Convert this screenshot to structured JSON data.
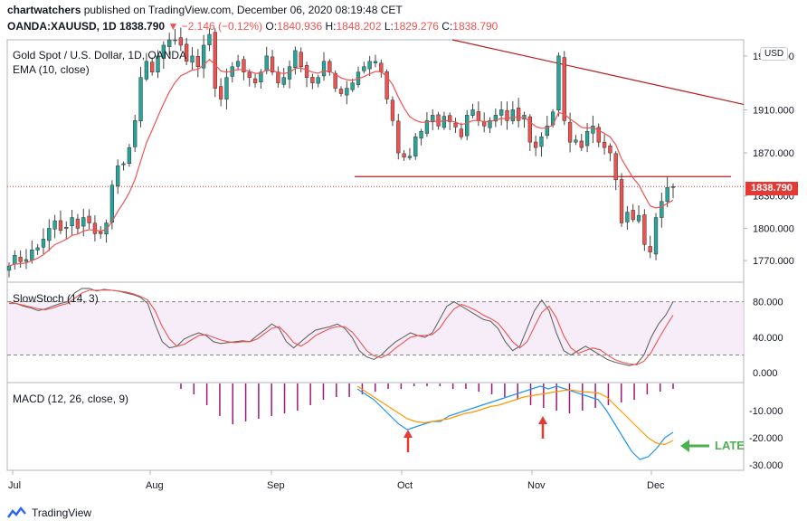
{
  "header": {
    "line1_user": "chartwatchers",
    "line1_text": " published on TradingView.com, December 06, 2020 08:19:48 CET",
    "symbol": "OANDA:XAUUSD, 1D",
    "last": "1838.790",
    "change": "▼ −2.146 (−0.12%)",
    "o_label": "O:",
    "o": "1840.936",
    "h_label": "H:",
    "h": "1848.202",
    "l_label": "L:",
    "l": "1829.276",
    "c_label": "C:",
    "c": "1838.790"
  },
  "pane_labels": {
    "title": "Gold Spot / U.S. Dollar, 1D, OANDA",
    "ema": "EMA (10, close)",
    "stoch": "SlowStoch (14, 3)",
    "macd": "MACD (12, 26, close, 9)"
  },
  "currency_button": "USD",
  "last_price_tag": "1838.790",
  "annotation": "LATE",
  "footer_logo": "TradingView",
  "colors": {
    "up": "#26a69a",
    "down": "#ef5350",
    "ema": "#ef5350",
    "stoch_k": "#666666",
    "stoch_d": "#ef5350",
    "macd": "#2196f3",
    "signal": "#ff9800",
    "hist": "#a0187a",
    "trend": "#b71c1c",
    "arrow": "#e53935",
    "late": "#4caf50"
  },
  "chart_data": [
    {
      "type": "candlestick",
      "title": "Gold Spot / U.S. Dollar, 1D, OANDA",
      "x_ticks": [
        "Jul",
        "Aug",
        "Sep",
        "Oct",
        "Nov",
        "Dec"
      ],
      "y_ticks": [
        1770,
        1800,
        1830,
        1870,
        1910,
        1960
      ],
      "ylim": [
        1750,
        1975
      ],
      "closes": [
        1765,
        1775,
        1769,
        1771,
        1780,
        1782,
        1790,
        1800,
        1807,
        1798,
        1801,
        1810,
        1800,
        1810,
        1805,
        1795,
        1795,
        1805,
        1840,
        1858,
        1860,
        1875,
        1900,
        1940,
        1955,
        1945,
        1960,
        1970,
        1975,
        1975,
        1970,
        1955,
        1960,
        1950,
        1970,
        1980,
        1930,
        1920,
        1940,
        1950,
        1955,
        1945,
        1940,
        1935,
        1945,
        1960,
        1945,
        1935,
        1940,
        1950,
        1965,
        1950,
        1940,
        1935,
        1940,
        1955,
        1945,
        1930,
        1925,
        1930,
        1935,
        1945,
        1950,
        1955,
        1955,
        1945,
        1920,
        1900,
        1870,
        1866,
        1867,
        1885,
        1890,
        1900,
        1905,
        1895,
        1904,
        1899,
        1894,
        1885,
        1905,
        1910,
        1900,
        1895,
        1900,
        1905,
        1910,
        1900,
        1910,
        1900,
        1905,
        1880,
        1875,
        1885,
        1895,
        1908,
        1960,
        1900,
        1880,
        1882,
        1875,
        1890,
        1895,
        1880,
        1875,
        1870,
        1845,
        1805,
        1815,
        1808,
        1812,
        1785,
        1778,
        1810,
        1825,
        1838,
        1838.79
      ],
      "ema_period": 10,
      "trendlines": [
        {
          "name": "resistance",
          "from": 1975,
          "to": 1915
        },
        {
          "name": "support",
          "value": 1848
        }
      ]
    },
    {
      "type": "line",
      "title": "SlowStoch (14, 3)",
      "y_ticks": [
        0,
        40,
        80
      ],
      "ylim": [
        -10,
        100
      ],
      "levels": [
        20,
        80
      ],
      "series": [
        {
          "name": "%K",
          "values": [
            80,
            78,
            75,
            73,
            70,
            72,
            75,
            78,
            80,
            90,
            95,
            95,
            92,
            94,
            93,
            92,
            90,
            88,
            85,
            78,
            55,
            35,
            28,
            30,
            38,
            42,
            45,
            42,
            35,
            33,
            34,
            35,
            36,
            35,
            42,
            48,
            55,
            50,
            35,
            28,
            35,
            42,
            48,
            50,
            52,
            55,
            50,
            40,
            25,
            18,
            15,
            20,
            28,
            35,
            40,
            45,
            42,
            40,
            45,
            60,
            75,
            80,
            75,
            70,
            65,
            60,
            58,
            50,
            35,
            25,
            30,
            50,
            70,
            82,
            70,
            45,
            25,
            20,
            25,
            30,
            25,
            20,
            15,
            12,
            10,
            8,
            10,
            20,
            40,
            55,
            65,
            80
          ]
        },
        {
          "name": "%D",
          "values": [
            78,
            78,
            76,
            74,
            72,
            71,
            73,
            76,
            78,
            84,
            90,
            93,
            93,
            93,
            93,
            92,
            91,
            89,
            86,
            82,
            70,
            52,
            38,
            30,
            32,
            37,
            42,
            43,
            40,
            37,
            35,
            34,
            35,
            35,
            38,
            44,
            50,
            52,
            44,
            34,
            30,
            35,
            42,
            46,
            50,
            52,
            52,
            46,
            36,
            25,
            19,
            17,
            21,
            28,
            34,
            40,
            42,
            42,
            43,
            50,
            62,
            72,
            77,
            74,
            70,
            65,
            61,
            56,
            46,
            35,
            28,
            35,
            52,
            68,
            75,
            62,
            42,
            28,
            22,
            25,
            28,
            26,
            20,
            15,
            12,
            10,
            9,
            13,
            23,
            38,
            52,
            65
          ]
        }
      ]
    },
    {
      "type": "line",
      "title": "MACD (12, 26, close, 9)",
      "y_ticks": [
        -10,
        -20,
        -30
      ],
      "ylim": [
        -32,
        0
      ],
      "series": [
        {
          "name": "MACD",
          "values": [
            -2,
            -4,
            -6,
            -9,
            -12,
            -15,
            -17,
            -16,
            -15,
            -14,
            -14,
            -12,
            -11,
            -10,
            -9,
            -8,
            -7,
            -6,
            -5,
            -4,
            -3,
            -2,
            -1,
            -2,
            -1,
            -2,
            -3,
            -4,
            -5,
            -6,
            -10,
            -15,
            -20,
            -25,
            -28,
            -27,
            -24,
            -20,
            -18
          ]
        },
        {
          "name": "Signal",
          "values": [
            -1,
            -3,
            -5,
            -7,
            -9,
            -11,
            -13,
            -14,
            -14.5,
            -14,
            -13.5,
            -13,
            -12,
            -11,
            -10.5,
            -9.5,
            -8.5,
            -8,
            -7,
            -6,
            -5,
            -4.5,
            -4,
            -3.5,
            -3,
            -2.5,
            -2.5,
            -3,
            -3.2,
            -3.5,
            -5,
            -8,
            -11,
            -14,
            -17,
            -20,
            -22,
            -22.5,
            -21
          ]
        },
        {
          "name": "Histogram",
          "values": [
            -2,
            -4,
            -8,
            -12,
            -15,
            -14,
            -13,
            -12,
            -11,
            -10,
            -8,
            -6,
            -5,
            -5,
            -4,
            -3,
            -2,
            -2,
            -1,
            -1,
            -1,
            -2,
            -2,
            -3,
            -4,
            -5,
            -6,
            -8,
            -9,
            -10,
            -11,
            -10,
            -9,
            -8,
            -7,
            -6,
            -4,
            -3,
            -2
          ]
        }
      ]
    }
  ]
}
